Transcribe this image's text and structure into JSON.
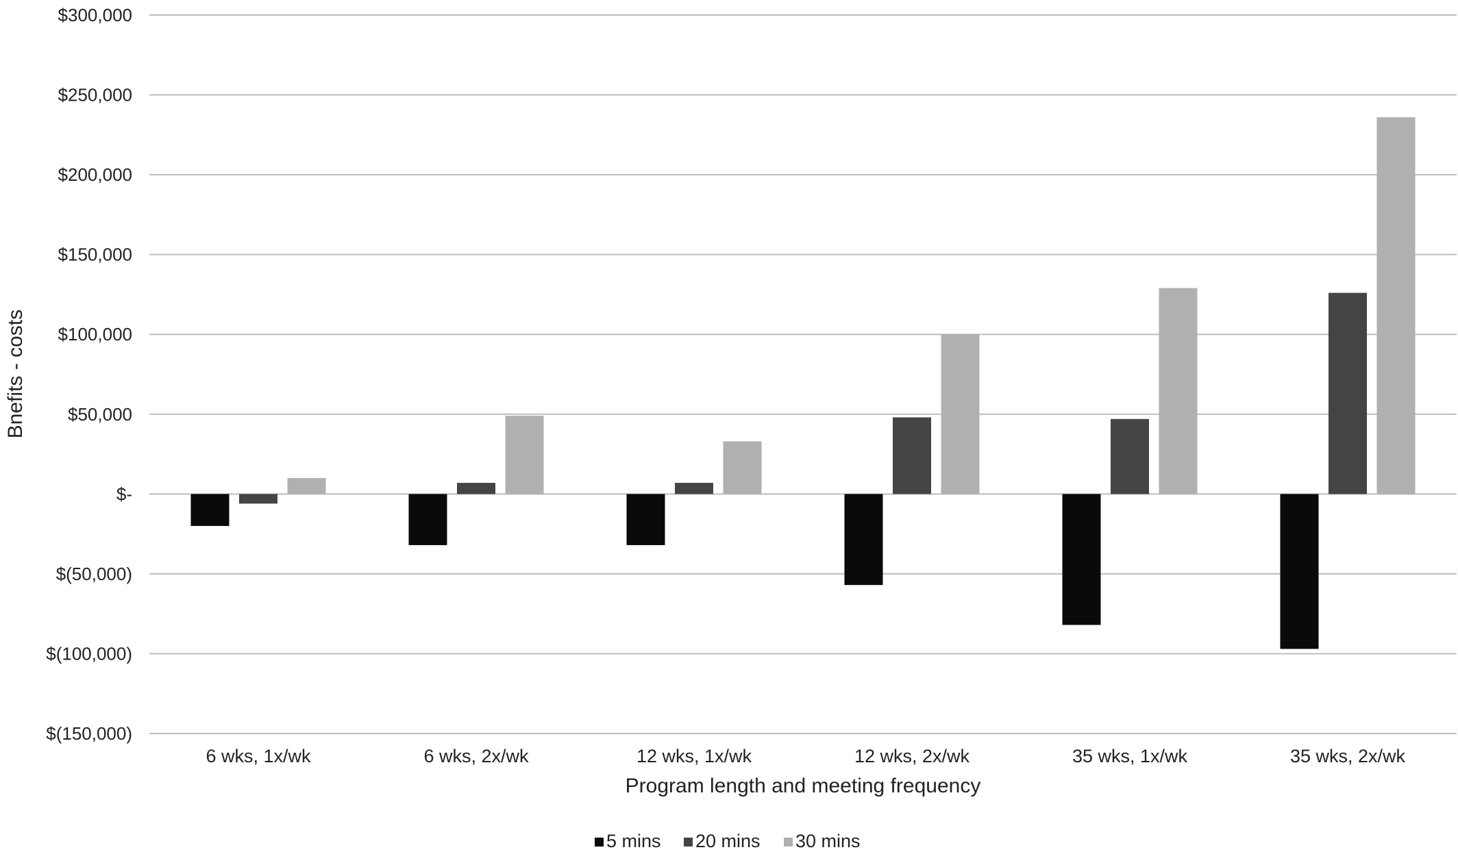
{
  "chart_data": {
    "type": "bar",
    "title": "",
    "xlabel": "Program length and meeting frequency",
    "ylabel": "Bnefits - costs",
    "categories": [
      "6 wks, 1x/wk",
      "6 wks, 2x/wk",
      "12 wks, 1x/wk",
      "12 wks, 2x/wk",
      "35 wks, 1x/wk",
      "35 wks, 2x/wk"
    ],
    "series": [
      {
        "name": "5 mins",
        "color": "#0a0a0a",
        "values": [
          -20000,
          -32000,
          -32000,
          -57000,
          -82000,
          -97000
        ]
      },
      {
        "name": "20 mins",
        "color": "#444444",
        "values": [
          -6000,
          7000,
          7000,
          48000,
          47000,
          126000
        ]
      },
      {
        "name": "30 mins",
        "color": "#b0b0b0",
        "values": [
          10000,
          49000,
          33000,
          100000,
          129000,
          236000
        ]
      }
    ],
    "ylim": [
      -150000,
      300000
    ],
    "yticks": [
      300000,
      250000,
      200000,
      150000,
      100000,
      50000,
      0,
      -50000,
      -100000,
      -150000
    ],
    "ytick_labels": [
      "$300,000",
      "$250,000",
      "$200,000",
      "$150,000",
      "$100,000",
      "$50,000",
      "$-",
      "$(50,000)",
      "$(100,000)",
      "$(150,000)"
    ],
    "grid": true,
    "legend_position": "bottom"
  }
}
